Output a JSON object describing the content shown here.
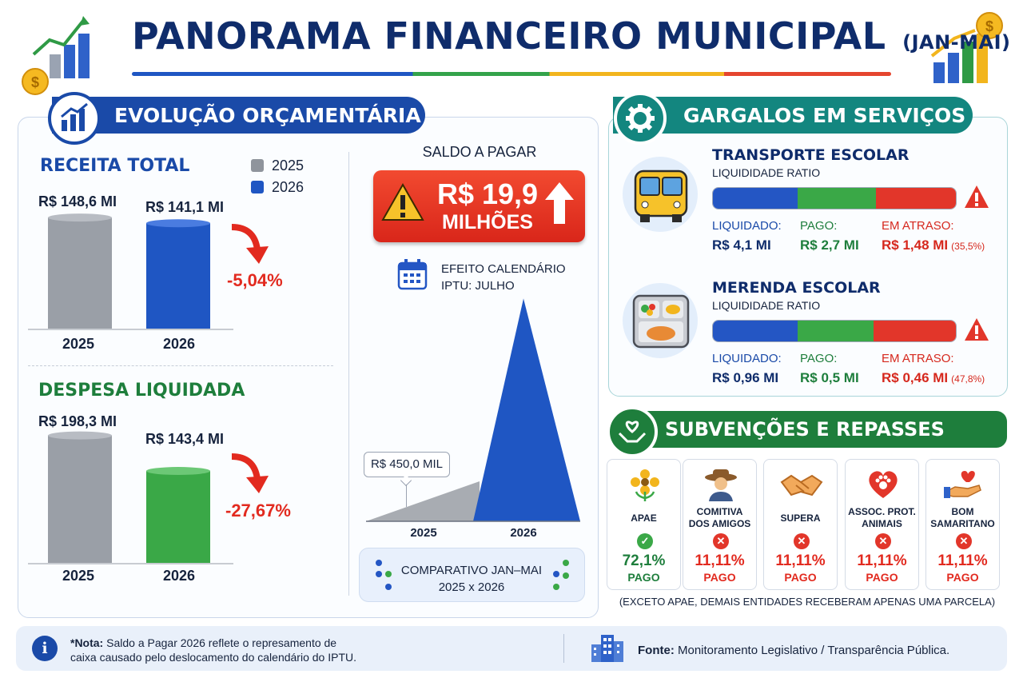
{
  "header": {
    "title": "PANORAMA FINANCEIRO MUNICIPAL",
    "title_suffix": "(JAN-MAI)"
  },
  "evolucao": {
    "banner": "EVOLUÇÃO ORÇAMENTÁRIA",
    "legend": [
      "2025",
      "2026"
    ],
    "receita": {
      "title": "RECEITA TOTAL",
      "labels": [
        "R$ 148,6 MI",
        "R$ 141,1 MI"
      ],
      "variation": "-5,04%",
      "years": [
        "2025",
        "2026"
      ]
    },
    "despesa": {
      "title": "DESPESA LIQUIDADA",
      "labels": [
        "R$ 198,3 MI",
        "R$ 143,4 MI"
      ],
      "variation": "-27,67%",
      "years": [
        "2025",
        "2026"
      ]
    }
  },
  "saldo": {
    "label": "SALDO A PAGAR",
    "value": "R$ 19,9",
    "unit": "MILHÕES",
    "effect_line1": "EFEITO CALENDÁRIO",
    "effect_line2": "IPTU: JULHO",
    "callout_2025": "R$ 450,0 MIL",
    "years": [
      "2025",
      "2026"
    ],
    "comparison_line1": "COMPARATIVO JAN–MAI",
    "comparison_line2": "2025 x 2026"
  },
  "chart_data": [
    {
      "type": "bar",
      "title": "RECEITA TOTAL",
      "categories": [
        "2025",
        "2026"
      ],
      "values": [
        148.6,
        141.1
      ],
      "unit": "R$ MI",
      "annotation": "-5,04%"
    },
    {
      "type": "bar",
      "title": "DESPESA LIQUIDADA",
      "categories": [
        "2025",
        "2026"
      ],
      "values": [
        198.3,
        143.4
      ],
      "unit": "R$ MI",
      "annotation": "-27,67%"
    },
    {
      "type": "area",
      "title": "SALDO A PAGAR",
      "categories": [
        "2025",
        "2026"
      ],
      "values": [
        0.45,
        19.9
      ],
      "unit": "R$ MILHÕES"
    }
  ],
  "gargalos": {
    "banner": "GARGALOS EM SERVIÇOS",
    "items": [
      {
        "name": "TRANSPORTE ESCOLAR",
        "sub": "LIQUIDIDADE RATIO",
        "liq_label": "LIQUIDADO:",
        "liq": "R$ 4,1 MI",
        "pago_label": "PAGO:",
        "pago": "R$ 2,7 MI",
        "atraso_label": "EM ATRASO:",
        "atraso": "R$ 1,48 MI",
        "atraso_pct": "(35,5%)"
      },
      {
        "name": "MERENDA ESCOLAR",
        "sub": "LIQUIDIDADE RATIO",
        "liq_label": "LIQUIDADO:",
        "liq": "R$ 0,96 MI",
        "pago_label": "PAGO:",
        "pago": "R$ 0,5 MI",
        "atraso_label": "EM ATRASO:",
        "atraso": "R$ 0,46 MI",
        "atraso_pct": "(47,8%)"
      }
    ],
    "colors": {
      "liquidado": "#2456c4",
      "pago": "#3aa847",
      "atraso": "#e2362a"
    }
  },
  "subvencoes": {
    "banner": "SUBVENÇÕES E REPASSES",
    "cards": [
      {
        "line1": "APAE",
        "line2": "",
        "pct": "72,1%",
        "status": "PAGO",
        "ok": true
      },
      {
        "line1": "COMITIVA",
        "line2": "DOS AMIGOS",
        "pct": "11,11%",
        "status": "PAGO",
        "ok": false
      },
      {
        "line1": "SUPERA",
        "line2": "",
        "pct": "11,11%",
        "status": "PAGO",
        "ok": false
      },
      {
        "line1": "ASSOC. PROT.",
        "line2": "ANIMAIS",
        "pct": "11,11%",
        "status": "PAGO",
        "ok": false
      },
      {
        "line1": "BOM",
        "line2": "SAMARITANO",
        "pct": "11,11%",
        "status": "PAGO",
        "ok": false
      }
    ],
    "note": "(EXCETO APAE, DEMAIS ENTIDADES RECEBERAM APENAS UMA PARCELA)"
  },
  "footer": {
    "note_prefix": "*Nota:",
    "note_line1": " Saldo a Pagar 2026 reflete o represamento de",
    "note_line2": "caixa causado pelo deslocamento do calendário do IPTU.",
    "source_prefix": "Fonte:",
    "source": " Monitoramento Legislativo / Transparência Pública."
  }
}
